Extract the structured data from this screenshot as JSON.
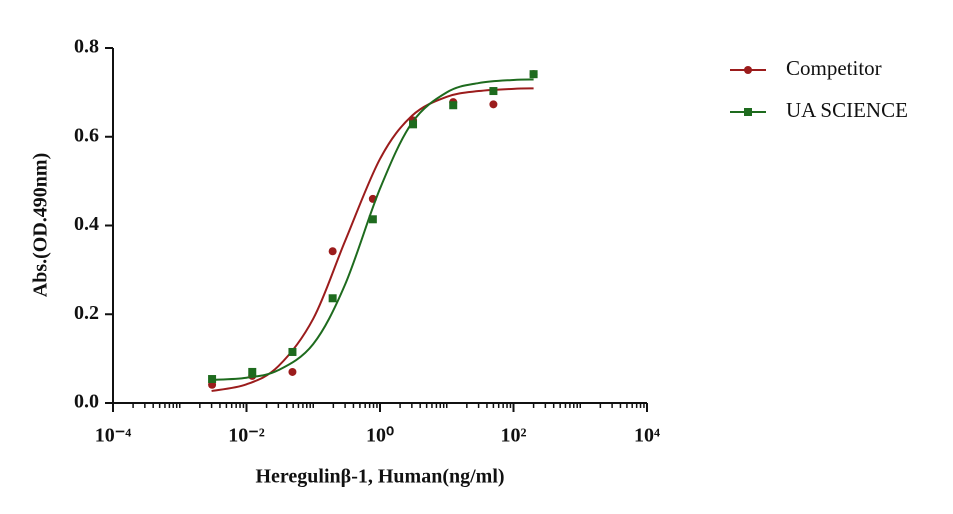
{
  "chart_data": {
    "type": "scatter",
    "x_label": "Heregulinβ-1, Human(ng/ml)",
    "y_label": "Abs.(OD.490nm)",
    "xscale": "log",
    "xlim": [
      0.0001,
      10000
    ],
    "xticks": [
      {
        "value": 0.0001,
        "label": "10⁻⁴"
      },
      {
        "value": 0.01,
        "label": "10⁻²"
      },
      {
        "value": 1,
        "label": "10⁰"
      },
      {
        "value": 100,
        "label": "10²"
      },
      {
        "value": 10000,
        "label": "10⁴"
      }
    ],
    "xminorticks": [
      0.0002,
      0.0003,
      0.0004,
      0.0005,
      0.0006,
      0.0007,
      0.0008,
      0.0009,
      0.001,
      0.002,
      0.003,
      0.004,
      0.005,
      0.006,
      0.007,
      0.008,
      0.009,
      0.02,
      0.03,
      0.04,
      0.05,
      0.06,
      0.07,
      0.08,
      0.09,
      0.1,
      0.2,
      0.3,
      0.4,
      0.5,
      0.6,
      0.7,
      0.8,
      0.9,
      2,
      3,
      4,
      5,
      6,
      7,
      8,
      9,
      10,
      20,
      30,
      40,
      50,
      60,
      70,
      80,
      90,
      200,
      300,
      400,
      500,
      600,
      700,
      800,
      900,
      1000,
      2000,
      3000,
      4000,
      5000,
      6000,
      7000,
      8000,
      9000
    ],
    "ylim": [
      0,
      0.8
    ],
    "yticks": [
      {
        "value": 0,
        "label": "0.0"
      },
      0.2,
      0.4,
      0.6,
      0.8
    ],
    "legend": "top-right",
    "x": [
      0.00305,
      0.0122,
      0.0488,
      0.1953,
      0.7813,
      3.125,
      12.5,
      50,
      200
    ],
    "series": [
      {
        "name": "Competitor",
        "color": "#9b1c1c",
        "marker": "circle",
        "values": [
          0.041,
          0.061,
          0.07,
          0.342,
          0.46,
          0.637,
          0.678,
          0.673,
          0.741
        ],
        "fit_x": [
          0.003,
          0.01,
          0.03,
          0.1,
          0.3,
          1,
          3,
          10,
          30,
          100,
          200
        ],
        "fit_values": [
          0.027,
          0.042,
          0.083,
          0.19,
          0.365,
          0.55,
          0.647,
          0.69,
          0.703,
          0.708,
          0.709
        ]
      },
      {
        "name": "UA SCIENCE",
        "color": "#1e6b1e",
        "marker": "square",
        "values": [
          0.054,
          0.07,
          0.115,
          0.236,
          0.414,
          0.628,
          0.671,
          0.703,
          0.741
        ],
        "fit_x": [
          0.003,
          0.01,
          0.03,
          0.1,
          0.3,
          1,
          3,
          10,
          30,
          100,
          200
        ],
        "fit_values": [
          0.052,
          0.057,
          0.074,
          0.133,
          0.267,
          0.483,
          0.631,
          0.7,
          0.721,
          0.728,
          0.729
        ]
      }
    ]
  }
}
